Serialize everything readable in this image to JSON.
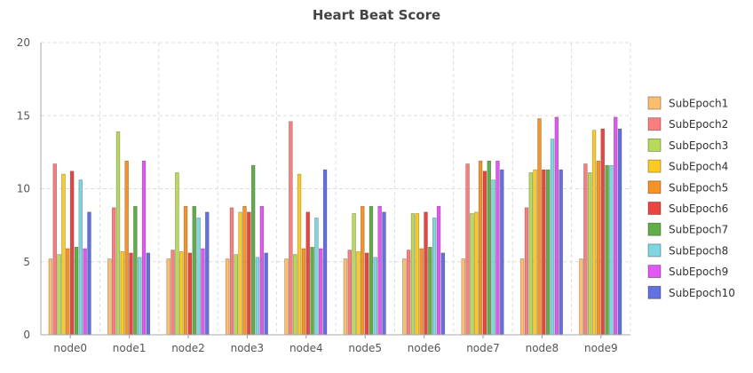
{
  "chart_data": {
    "type": "bar",
    "title": "Heart Beat Score",
    "xlabel": "",
    "ylabel": "",
    "ylim": [
      0,
      20
    ],
    "yticks": [
      0,
      5,
      10,
      15,
      20
    ],
    "grid": true,
    "legend_position": "right",
    "categories": [
      "node0",
      "node1",
      "node2",
      "node3",
      "node4",
      "node5",
      "node6",
      "node7",
      "node8",
      "node9"
    ],
    "series": [
      {
        "name": "SubEpoch1",
        "color": "#fdbf6f",
        "values": [
          5.2,
          5.2,
          5.2,
          5.2,
          5.2,
          5.2,
          5.2,
          5.2,
          5.2,
          5.2
        ]
      },
      {
        "name": "SubEpoch2",
        "color": "#fb7e7e",
        "values": [
          11.7,
          8.7,
          5.8,
          8.7,
          14.6,
          5.8,
          5.8,
          11.7,
          8.7,
          11.7
        ]
      },
      {
        "name": "SubEpoch3",
        "color": "#b8d95a",
        "values": [
          5.5,
          13.9,
          11.1,
          5.5,
          5.5,
          8.3,
          8.3,
          8.3,
          11.1,
          11.1
        ]
      },
      {
        "name": "SubEpoch4",
        "color": "#fbcb24",
        "values": [
          11.0,
          5.7,
          5.7,
          8.4,
          11.0,
          5.7,
          8.3,
          8.4,
          11.3,
          14.0
        ]
      },
      {
        "name": "SubEpoch5",
        "color": "#f59328",
        "values": [
          5.9,
          11.9,
          8.8,
          8.8,
          5.9,
          8.8,
          5.9,
          11.9,
          14.8,
          11.9
        ]
      },
      {
        "name": "SubEpoch6",
        "color": "#e8463e",
        "values": [
          11.2,
          5.6,
          5.6,
          8.4,
          8.4,
          5.6,
          8.4,
          11.2,
          11.3,
          14.1
        ]
      },
      {
        "name": "SubEpoch7",
        "color": "#62ad47",
        "values": [
          6.0,
          8.8,
          8.8,
          11.6,
          6.0,
          8.8,
          6.0,
          11.9,
          11.3,
          11.6
        ]
      },
      {
        "name": "SubEpoch8",
        "color": "#7fd6e0",
        "values": [
          10.6,
          5.3,
          8.0,
          5.3,
          8.0,
          5.3,
          8.0,
          10.6,
          13.4,
          11.6
        ]
      },
      {
        "name": "SubEpoch9",
        "color": "#e257f2",
        "values": [
          5.9,
          11.9,
          5.9,
          8.8,
          5.9,
          8.8,
          8.8,
          11.9,
          14.9,
          14.9
        ]
      },
      {
        "name": "SubEpoch10",
        "color": "#6270e0",
        "values": [
          8.4,
          5.6,
          8.4,
          5.6,
          11.3,
          8.4,
          5.6,
          11.3,
          11.3,
          14.1
        ]
      }
    ]
  }
}
